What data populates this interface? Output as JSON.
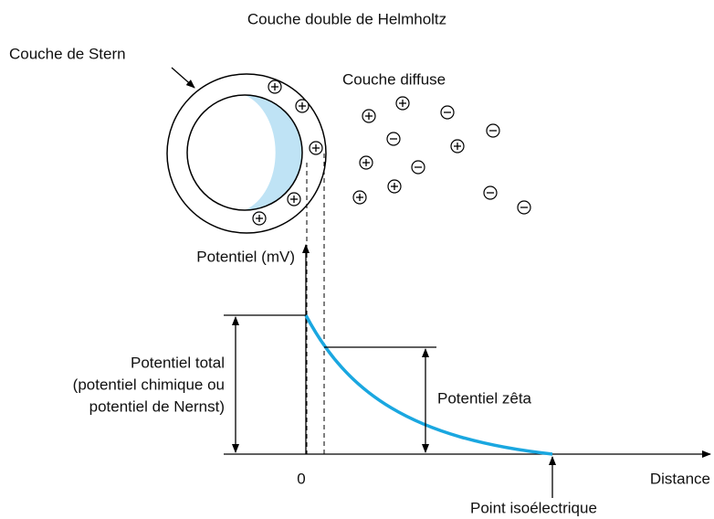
{
  "title": "Couche double de Helmholtz",
  "labels": {
    "stern": "Couche de Stern",
    "diffuse": "Couche diffuse",
    "y_axis": "Potentiel (mV)",
    "total": [
      "Potentiel total",
      "(potentiel chimique ou",
      "potentiel de Nernst)"
    ],
    "zeta": "Potentiel zêta",
    "origin": "0",
    "x_axis": "Distance",
    "isoelectric": "Point isoélectrique"
  }
}
